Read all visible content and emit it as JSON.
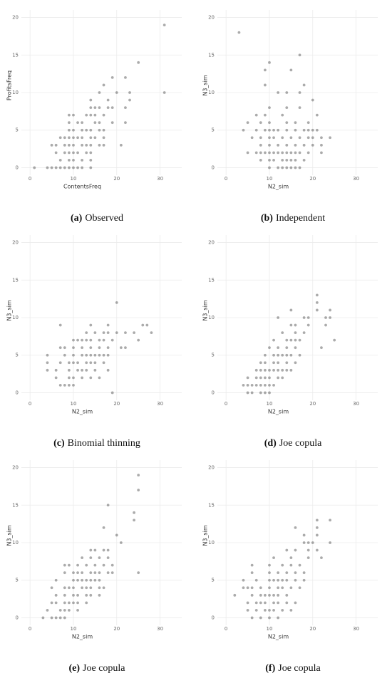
{
  "chart_data": [
    {
      "type": "scatter",
      "x_label": "ContentsFreq",
      "y_label": "ProfitsFreq",
      "caption_tag": "(a)",
      "caption": "Observed",
      "xlim": [
        -2,
        35
      ],
      "ylim": [
        -1,
        21
      ],
      "xticks": [
        0,
        10,
        20,
        30
      ],
      "yticks": [
        0,
        5,
        10,
        15,
        20
      ],
      "grid": true,
      "color": "#444444",
      "x": [
        1,
        4,
        5,
        6,
        7,
        8,
        9,
        10,
        11,
        12,
        14,
        7,
        9,
        10,
        12,
        14,
        6,
        8,
        9,
        10,
        11,
        13,
        14,
        5,
        6,
        8,
        9,
        10,
        12,
        13,
        14,
        16,
        17,
        21,
        7,
        8,
        9,
        10,
        11,
        12,
        14,
        15,
        17,
        9,
        10,
        12,
        13,
        14,
        16,
        17,
        9,
        11,
        12,
        15,
        16,
        19,
        22,
        9,
        10,
        13,
        14,
        15,
        17,
        14,
        15,
        16,
        18,
        19,
        22,
        14,
        18,
        23,
        16,
        20,
        23,
        31,
        17,
        19,
        22,
        25,
        31
      ],
      "y": [
        0,
        0,
        0,
        0,
        0,
        0,
        0,
        0,
        0,
        0,
        0,
        1,
        1,
        1,
        1,
        1,
        2,
        2,
        2,
        2,
        2,
        2,
        2,
        3,
        3,
        3,
        3,
        3,
        3,
        3,
        3,
        3,
        3,
        3,
        4,
        4,
        4,
        4,
        4,
        4,
        4,
        4,
        4,
        5,
        5,
        5,
        5,
        5,
        5,
        5,
        6,
        6,
        6,
        6,
        6,
        6,
        6,
        7,
        7,
        7,
        7,
        7,
        7,
        8,
        8,
        8,
        8,
        8,
        8,
        9,
        9,
        9,
        10,
        10,
        10,
        10,
        11,
        12,
        12,
        14,
        19
      ]
    },
    {
      "type": "scatter",
      "x_label": "N2_sim",
      "y_label": "N3_sim",
      "caption_tag": "(b)",
      "caption": "Independent",
      "xlim": [
        -2,
        35
      ],
      "ylim": [
        -1,
        21
      ],
      "xticks": [
        0,
        10,
        20,
        30
      ],
      "yticks": [
        0,
        5,
        10,
        15,
        20
      ],
      "grid": true,
      "color": "#444444",
      "x": [
        10,
        12,
        13,
        14,
        15,
        16,
        17,
        8,
        10,
        11,
        13,
        14,
        15,
        16,
        18,
        5,
        7,
        8,
        9,
        10,
        11,
        12,
        13,
        14,
        15,
        16,
        17,
        19,
        22,
        8,
        10,
        12,
        14,
        16,
        18,
        20,
        22,
        6,
        8,
        10,
        11,
        13,
        15,
        17,
        19,
        20,
        22,
        24,
        4,
        7,
        9,
        10,
        11,
        12,
        14,
        16,
        18,
        19,
        20,
        21,
        5,
        8,
        10,
        14,
        16,
        19,
        7,
        9,
        13,
        21,
        10,
        14,
        17,
        20,
        12,
        14,
        17,
        9,
        18,
        9,
        15,
        10,
        17,
        3
      ],
      "y": [
        0,
        0,
        0,
        0,
        0,
        0,
        0,
        1,
        1,
        1,
        1,
        1,
        1,
        1,
        1,
        2,
        2,
        2,
        2,
        2,
        2,
        2,
        2,
        2,
        2,
        2,
        2,
        2,
        2,
        3,
        3,
        3,
        3,
        3,
        3,
        3,
        3,
        4,
        4,
        4,
        4,
        4,
        4,
        4,
        4,
        4,
        4,
        4,
        5,
        5,
        5,
        5,
        5,
        5,
        5,
        5,
        5,
        5,
        5,
        5,
        6,
        6,
        6,
        6,
        6,
        6,
        7,
        7,
        7,
        7,
        8,
        8,
        8,
        9,
        10,
        10,
        10,
        11,
        11,
        13,
        13,
        14,
        15,
        18
      ]
    },
    {
      "type": "scatter",
      "x_label": "N2_sim",
      "y_label": "N3_sim",
      "caption_tag": "(c)",
      "caption": "Binomial thinning",
      "xlim": [
        -2,
        35
      ],
      "ylim": [
        -1,
        21
      ],
      "xticks": [
        0,
        10,
        20,
        30
      ],
      "yticks": [
        0,
        5,
        10,
        15,
        20
      ],
      "grid": true,
      "color": "#444444",
      "x": [
        19,
        7,
        8,
        9,
        10,
        6,
        9,
        10,
        12,
        14,
        16,
        4,
        6,
        9,
        11,
        12,
        13,
        15,
        18,
        4,
        7,
        9,
        10,
        11,
        13,
        14,
        15,
        17,
        4,
        8,
        10,
        12,
        13,
        14,
        15,
        16,
        17,
        18,
        7,
        8,
        10,
        12,
        14,
        16,
        18,
        21,
        22,
        10,
        11,
        12,
        13,
        14,
        16,
        17,
        19,
        25,
        13,
        15,
        17,
        18,
        20,
        22,
        24,
        28,
        7,
        14,
        18,
        26,
        27,
        20
      ],
      "y": [
        0,
        1,
        1,
        1,
        1,
        2,
        2,
        2,
        2,
        2,
        2,
        3,
        3,
        3,
        3,
        3,
        3,
        3,
        3,
        4,
        4,
        4,
        4,
        4,
        4,
        4,
        4,
        4,
        5,
        5,
        5,
        5,
        5,
        5,
        5,
        5,
        5,
        5,
        6,
        6,
        6,
        6,
        6,
        6,
        6,
        6,
        6,
        7,
        7,
        7,
        7,
        7,
        7,
        7,
        7,
        7,
        8,
        8,
        8,
        8,
        8,
        8,
        8,
        8,
        9,
        9,
        9,
        9,
        9,
        12
      ]
    },
    {
      "type": "scatter",
      "x_label": "N2_sim",
      "y_label": "N3_sim",
      "caption_tag": "(d)",
      "caption": "Joe copula",
      "xlim": [
        -2,
        35
      ],
      "ylim": [
        -1,
        21
      ],
      "xticks": [
        0,
        10,
        20,
        30
      ],
      "yticks": [
        0,
        5,
        10,
        15,
        20
      ],
      "grid": true,
      "color": "#444444",
      "x": [
        5,
        6,
        8,
        9,
        10,
        4,
        5,
        6,
        7,
        8,
        9,
        10,
        11,
        5,
        7,
        8,
        9,
        10,
        12,
        13,
        7,
        8,
        9,
        10,
        11,
        12,
        13,
        14,
        15,
        8,
        9,
        11,
        12,
        14,
        16,
        9,
        11,
        12,
        13,
        14,
        15,
        17,
        10,
        12,
        14,
        16,
        22,
        11,
        14,
        15,
        16,
        17,
        25,
        13,
        16,
        18,
        15,
        16,
        19,
        23,
        12,
        18,
        19,
        23,
        24,
        15,
        21,
        24,
        21,
        21
      ],
      "y": [
        0,
        0,
        0,
        0,
        0,
        1,
        1,
        1,
        1,
        1,
        1,
        1,
        1,
        2,
        2,
        2,
        2,
        2,
        2,
        2,
        3,
        3,
        3,
        3,
        3,
        3,
        3,
        3,
        3,
        4,
        4,
        4,
        4,
        4,
        4,
        5,
        5,
        5,
        5,
        5,
        5,
        5,
        6,
        6,
        6,
        6,
        6,
        7,
        7,
        7,
        7,
        7,
        7,
        8,
        8,
        8,
        9,
        9,
        9,
        9,
        10,
        10,
        10,
        10,
        10,
        11,
        11,
        11,
        12,
        13
      ]
    },
    {
      "type": "scatter",
      "x_label": "N2_sim",
      "y_label": "N3_sim",
      "caption_tag": "(e)",
      "caption": "Joe copula",
      "xlim": [
        -2,
        35
      ],
      "ylim": [
        -1,
        21
      ],
      "xticks": [
        0,
        10,
        20,
        30
      ],
      "yticks": [
        0,
        5,
        10,
        15,
        20
      ],
      "grid": true,
      "color": "#444444",
      "x": [
        3,
        5,
        6,
        7,
        8,
        4,
        7,
        8,
        9,
        11,
        5,
        6,
        8,
        9,
        10,
        11,
        13,
        6,
        8,
        10,
        11,
        13,
        14,
        16,
        5,
        8,
        9,
        10,
        12,
        13,
        14,
        16,
        17,
        6,
        10,
        11,
        12,
        13,
        14,
        15,
        16,
        8,
        10,
        11,
        12,
        14,
        15,
        16,
        18,
        19,
        25,
        8,
        9,
        11,
        13,
        15,
        17,
        19,
        12,
        14,
        16,
        18,
        14,
        15,
        17,
        18,
        21,
        20,
        17,
        24,
        24,
        18,
        25,
        25
      ],
      "y": [
        0,
        0,
        0,
        0,
        0,
        1,
        1,
        1,
        1,
        1,
        2,
        2,
        2,
        2,
        2,
        2,
        2,
        3,
        3,
        3,
        3,
        3,
        3,
        3,
        4,
        4,
        4,
        4,
        4,
        4,
        4,
        4,
        4,
        5,
        5,
        5,
        5,
        5,
        5,
        5,
        5,
        6,
        6,
        6,
        6,
        6,
        6,
        6,
        6,
        6,
        6,
        7,
        7,
        7,
        7,
        7,
        7,
        7,
        8,
        8,
        8,
        8,
        9,
        9,
        9,
        9,
        10,
        11,
        12,
        13,
        14,
        15,
        17,
        19
      ]
    },
    {
      "type": "scatter",
      "x_label": "N2_sim",
      "y_label": "N3_sim",
      "caption_tag": "(f)",
      "caption": "Joe copula",
      "xlim": [
        -2,
        35
      ],
      "ylim": [
        -1,
        21
      ],
      "xticks": [
        0,
        10,
        20,
        30
      ],
      "yticks": [
        0,
        5,
        10,
        15,
        20
      ],
      "grid": true,
      "color": "#444444",
      "x": [
        6,
        8,
        10,
        12,
        5,
        7,
        9,
        10,
        11,
        13,
        15,
        5,
        7,
        8,
        9,
        11,
        12,
        14,
        16,
        2,
        6,
        8,
        9,
        10,
        11,
        12,
        14,
        4,
        5,
        6,
        8,
        10,
        12,
        13,
        15,
        17,
        4,
        7,
        10,
        11,
        12,
        13,
        14,
        16,
        18,
        6,
        10,
        12,
        14,
        16,
        18,
        6,
        10,
        13,
        15,
        17,
        11,
        15,
        19,
        22,
        14,
        16,
        19,
        21,
        18,
        19,
        20,
        24,
        18,
        21,
        16,
        21,
        21,
        24
      ],
      "y": [
        0,
        0,
        0,
        0,
        1,
        1,
        1,
        1,
        1,
        1,
        1,
        2,
        2,
        2,
        2,
        2,
        2,
        2,
        2,
        3,
        3,
        3,
        3,
        3,
        3,
        3,
        3,
        4,
        4,
        4,
        4,
        4,
        4,
        4,
        4,
        4,
        5,
        5,
        5,
        5,
        5,
        5,
        5,
        5,
        5,
        6,
        6,
        6,
        6,
        6,
        6,
        7,
        7,
        7,
        7,
        7,
        8,
        8,
        8,
        8,
        9,
        9,
        9,
        9,
        10,
        10,
        10,
        10,
        11,
        11,
        12,
        12,
        13,
        13
      ]
    }
  ]
}
